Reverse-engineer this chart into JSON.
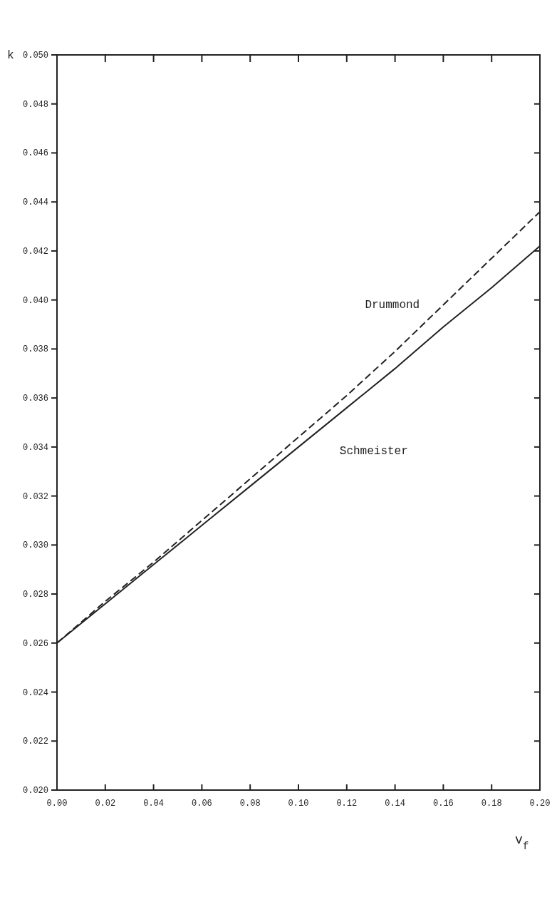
{
  "chart_data": {
    "type": "line",
    "xlabel": "v$_{f}$",
    "ylabel": "k",
    "x": [
      0,
      0.02,
      0.04,
      0.06,
      0.08,
      0.1,
      0.12,
      0.14,
      0.16,
      0.18,
      0.2
    ],
    "series": [
      {
        "name": "Drummond",
        "color": "#222222",
        "line_style": "dashed",
        "values": [
          0.026,
          0.0277,
          0.0293,
          0.031,
          0.0327,
          0.0344,
          0.0361,
          0.0379,
          0.0398,
          0.0417,
          0.0436
        ]
      },
      {
        "name": "Schmeister",
        "color": "#222222",
        "line_style": "solid",
        "values": [
          0.026,
          0.0276,
          0.0292,
          0.0308,
          0.0324,
          0.034,
          0.0356,
          0.0372,
          0.0389,
          0.0405,
          0.0422
        ]
      }
    ],
    "xlim": [
      0,
      0.2
    ],
    "xticks": [
      {
        "value": 0,
        "label": "0.00"
      },
      0.02,
      0.04,
      0.06,
      0.08,
      {
        "value": 0.1,
        "label": "0.10"
      },
      0.12,
      0.14,
      0.16,
      0.18,
      {
        "value": 0.2,
        "label": "0.20"
      }
    ],
    "ylim": [
      0.02,
      0.05
    ],
    "yticks": [
      {
        "value": 0.02,
        "label": "0.020"
      },
      0.022,
      0.024,
      0.026,
      0.028,
      {
        "value": 0.03,
        "label": "0.030"
      },
      0.032,
      0.034,
      0.036,
      0.038,
      {
        "value": 0.04,
        "label": "0.040"
      },
      0.042,
      0.044,
      0.046,
      0.048,
      {
        "value": 0.05,
        "label": "0.050"
      }
    ],
    "grid": false,
    "marker": "none"
  }
}
